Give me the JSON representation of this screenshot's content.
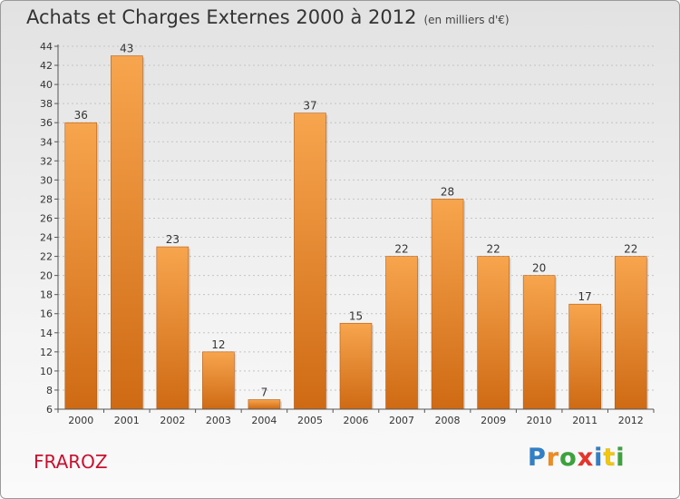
{
  "chart_data": {
    "type": "bar",
    "title": "Achats et Charges Externes 2000 à 2012",
    "subtitle": "(en milliers d'€)",
    "categories": [
      "2000",
      "2001",
      "2002",
      "2003",
      "2004",
      "2005",
      "2006",
      "2007",
      "2008",
      "2009",
      "2010",
      "2011",
      "2012"
    ],
    "values": [
      36,
      43,
      23,
      12,
      7,
      37,
      15,
      22,
      28,
      22,
      20,
      17,
      22
    ],
    "ylim": [
      6,
      44
    ],
    "yticks": [
      6,
      8,
      10,
      12,
      14,
      16,
      18,
      20,
      22,
      24,
      26,
      28,
      30,
      32,
      34,
      36,
      38,
      40,
      42,
      44
    ],
    "grid": true,
    "bar_color_top": "#f7a54e",
    "bar_color_bottom": "#cf6a14"
  },
  "footer": {
    "commune": "FRAROZ",
    "logo_letters": [
      "P",
      "r",
      "o",
      "x",
      "i",
      "t",
      "i"
    ],
    "logo_colors": [
      "#2f80c8",
      "#f28c1c",
      "#3aa43a",
      "#e8332a",
      "#2f80c8",
      "#f2c80c",
      "#3aa43a"
    ]
  }
}
